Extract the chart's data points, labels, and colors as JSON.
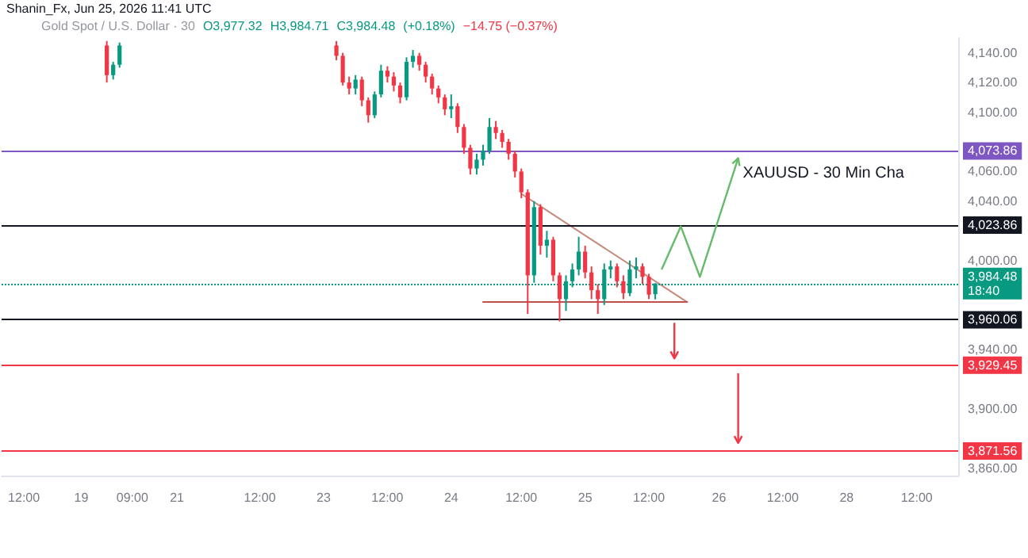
{
  "chart_data": {
    "type": "candlestick",
    "title": "Shanin_Fx, Jun 25, 2026 11:41 UTC",
    "annotations": [
      "Gold Spot / U.S. Dollar · 30",
      "O3,977.32",
      "H3,984.71",
      "C3,984.48",
      "(+0.18%)",
      "−14.75 (−0.37%)",
      "XAUUSD - 30 Min Cha"
    ],
    "categories": [
      null,
      null,
      null,
      "12:00",
      null,
      null,
      null,
      null,
      null,
      null,
      null,
      null,
      "19",
      null,
      null,
      null,
      null,
      null,
      null,
      null,
      "09:00",
      null,
      null,
      null,
      null,
      null,
      null,
      "21",
      null,
      null,
      null,
      null,
      null,
      null,
      null,
      null,
      null,
      null,
      null,
      null,
      "12:00",
      null,
      null,
      null,
      null,
      null,
      null,
      null,
      null,
      null,
      "23",
      null,
      null,
      null,
      null,
      null,
      null,
      null,
      null,
      null,
      "12:00",
      null,
      null,
      null,
      null,
      null,
      null,
      null,
      null,
      null,
      "24",
      null,
      null,
      null,
      null,
      null,
      null,
      null,
      null,
      null,
      null,
      "12:00",
      null,
      null,
      null,
      null,
      null,
      null,
      null,
      null,
      null,
      "25",
      null,
      null,
      null,
      null,
      null,
      null,
      null,
      null,
      null,
      "12:00",
      null,
      null,
      null,
      null,
      null,
      null,
      null,
      null,
      null,
      null,
      "26",
      null,
      null,
      null,
      null,
      null,
      null,
      null,
      null,
      null,
      "12:00",
      null,
      null,
      null,
      null,
      null,
      null,
      null,
      null,
      null,
      "28",
      null,
      null,
      null,
      null,
      null,
      null,
      null,
      null,
      null,
      null,
      "12:00",
      null,
      null,
      null,
      null,
      null,
      null
    ],
    "ylim": [
      3855,
      4150
    ],
    "yticks": [
      {
        "value": 3860,
        "label": "3,860.00"
      },
      {
        "value": 3900,
        "label": "3,900.00"
      },
      {
        "value": 3940,
        "label": "3,940.00"
      },
      {
        "value": 4000,
        "label": "4,000.00"
      },
      {
        "value": 4040,
        "label": "4,040.00"
      },
      {
        "value": 4060,
        "label": "4,060.00"
      },
      {
        "value": 4100,
        "label": "4,100.00"
      },
      {
        "value": 4120,
        "label": "4,120.00"
      },
      {
        "value": 4140,
        "label": "4,140.00"
      }
    ],
    "grid": false,
    "series": [
      {
        "ohlc": [
          null,
          null,
          null,
          null,
          null,
          null,
          null,
          null,
          null,
          null,
          null,
          null,
          null,
          null,
          null,
          null,
          [
            4145,
            4148,
            4120,
            4125
          ],
          [
            4125,
            4134,
            4122,
            4132
          ],
          [
            4132,
            4147,
            4130,
            4145
          ],
          null,
          null,
          null,
          null,
          null,
          null,
          null,
          null,
          null,
          null,
          null,
          null,
          null,
          null,
          null,
          null,
          null,
          null,
          null,
          null,
          null,
          null,
          null,
          null,
          null,
          null,
          null,
          null,
          null,
          null,
          null,
          null,
          null,
          [
            4145,
            4148,
            4135,
            4138
          ],
          [
            4138,
            4140,
            4118,
            4120
          ],
          [
            4120,
            4124,
            4112,
            4116
          ],
          [
            4116,
            4125,
            4112,
            4122
          ],
          [
            4122,
            4124,
            4104,
            4108
          ],
          [
            4108,
            4110,
            4093,
            4098
          ],
          [
            4098,
            4114,
            4096,
            4112
          ],
          [
            4112,
            4132,
            4110,
            4128
          ],
          [
            4128,
            4131,
            4120,
            4124
          ],
          [
            4124,
            4127,
            4114,
            4118
          ],
          [
            4118,
            4120,
            4106,
            4110
          ],
          [
            4110,
            4137,
            4108,
            4134
          ],
          [
            4134,
            4142,
            4130,
            4138
          ],
          [
            4138,
            4140,
            4128,
            4132
          ],
          [
            4132,
            4134,
            4120,
            4124
          ],
          [
            4124,
            4126,
            4112,
            4116
          ],
          [
            4116,
            4118,
            4106,
            4110
          ],
          [
            4110,
            4112,
            4098,
            4102
          ],
          [
            4102,
            4112,
            4096,
            4104
          ],
          [
            4104,
            4106,
            4086,
            4090
          ],
          [
            4090,
            4092,
            4072,
            4076
          ],
          [
            4076,
            4078,
            4058,
            4062
          ],
          [
            4062,
            4072,
            4058,
            4068
          ],
          [
            4068,
            4078,
            4064,
            4074
          ],
          [
            4074,
            4096,
            4072,
            4090
          ],
          [
            4090,
            4094,
            4082,
            4086
          ],
          [
            4086,
            4088,
            4076,
            4080
          ],
          [
            4080,
            4082,
            4068,
            4072
          ],
          [
            4072,
            4074,
            4056,
            4060
          ],
          [
            4060,
            4062,
            4042,
            4046
          ],
          [
            4046,
            4048,
            3964,
            3990
          ],
          [
            3990,
            4040,
            3985,
            4036
          ],
          [
            4036,
            4038,
            4004,
            4010
          ],
          [
            4010,
            4020,
            4002,
            4014
          ],
          [
            4014,
            4016,
            3986,
            3990
          ],
          [
            3990,
            3992,
            3959,
            3974
          ],
          [
            3974,
            3990,
            3966,
            3986
          ],
          [
            3986,
            3998,
            3982,
            3994
          ],
          [
            3994,
            4016,
            3990,
            4006
          ],
          [
            4006,
            4010,
            3988,
            3992
          ],
          [
            3992,
            3996,
            3974,
            3980
          ],
          [
            3980,
            3984,
            3964,
            3974
          ],
          [
            3974,
            3998,
            3970,
            3994
          ],
          [
            3994,
            4000,
            3988,
            3996
          ],
          [
            3996,
            3998,
            3982,
            3986
          ],
          [
            3986,
            3990,
            3974,
            3978
          ],
          [
            3978,
            4000,
            3976,
            3994
          ],
          [
            3994,
            4002,
            3988,
            3996
          ],
          [
            3996,
            3998,
            3984,
            3989
          ],
          [
            3989,
            3991,
            3974,
            3977
          ],
          [
            3977.32,
            3984.71,
            3973.8,
            3984.48
          ],
          null,
          null,
          null,
          null,
          null,
          null,
          null,
          null,
          null,
          null,
          null,
          null,
          null,
          null,
          null,
          null,
          null,
          null,
          null,
          null,
          null,
          null,
          null,
          null,
          null,
          null,
          null,
          null,
          null,
          null,
          null,
          null,
          null,
          null,
          null,
          null,
          null,
          null,
          null,
          null,
          null,
          null,
          null,
          null,
          null,
          null,
          null
        ],
        "colors": [
          null,
          null,
          null,
          null,
          null,
          null,
          null,
          null,
          null,
          null,
          null,
          null,
          null,
          null,
          null,
          null,
          "#f23645",
          "#089981",
          "#089981",
          null,
          null,
          null,
          null,
          null,
          null,
          null,
          null,
          null,
          null,
          null,
          null,
          null,
          null,
          null,
          null,
          null,
          null,
          null,
          null,
          null,
          null,
          null,
          null,
          null,
          null,
          null,
          null,
          null,
          null,
          null,
          null,
          null,
          "#f23645",
          "#f23645",
          "#f23645",
          "#089981",
          "#f23645",
          "#f23645",
          "#089981",
          "#089981",
          "#f23645",
          "#f23645",
          "#f23645",
          "#089981",
          "#089981",
          "#f23645",
          "#f23645",
          "#f23645",
          "#f23645",
          "#f23645",
          "#089981",
          "#f23645",
          "#f23645",
          "#f23645",
          "#089981",
          "#089981",
          "#089981",
          "#f23645",
          "#f23645",
          "#f23645",
          "#f23645",
          "#f23645",
          "#f23645",
          "#089981",
          "#f23645",
          "#089981",
          "#f23645",
          "#f23645",
          "#089981",
          "#089981",
          "#089981",
          "#f23645",
          "#f23645",
          "#f23645",
          "#089981",
          "#089981",
          "#f23645",
          "#f23645",
          "#089981",
          "#089981",
          "#f23645",
          "#f23645",
          "#089981",
          null,
          null,
          null,
          null,
          null,
          null,
          null,
          null,
          null,
          null,
          null,
          null,
          null,
          null,
          null,
          null,
          null,
          null,
          null,
          null,
          null,
          null,
          null,
          null,
          null,
          null,
          null,
          null,
          null,
          null,
          null,
          null,
          null,
          null,
          null,
          null,
          null,
          null,
          null,
          null,
          null,
          null,
          null,
          null,
          null,
          null,
          null
        ]
      },
      {
        "type": "line",
        "color": "#c48a7a",
        "values": [
          null,
          null,
          null,
          null,
          null,
          null,
          null,
          null,
          null,
          null,
          null,
          null,
          null,
          null,
          null,
          null,
          null,
          null,
          null,
          null,
          null,
          null,
          null,
          null,
          null,
          null,
          null,
          null,
          null,
          null,
          null,
          null,
          null,
          null,
          null,
          null,
          null,
          null,
          null,
          null,
          null,
          null,
          null,
          null,
          null,
          null,
          null,
          null,
          null,
          null,
          null,
          null,
          null,
          null,
          null,
          null,
          null,
          null,
          null,
          null,
          null,
          null,
          null,
          null,
          null,
          null,
          null,
          null,
          null,
          null,
          null,
          null,
          null,
          null,
          null,
          null,
          null,
          null,
          null,
          null,
          null,
          4045,
          null,
          null,
          null,
          null,
          null,
          null,
          null,
          null,
          null,
          null,
          null,
          null,
          null,
          null,
          null,
          null,
          null,
          null,
          null,
          null,
          null,
          null,
          null,
          null,
          null,
          3972,
          null,
          null,
          null,
          null,
          null,
          null,
          null,
          null,
          null,
          null,
          null,
          null,
          null,
          null,
          null,
          null,
          null,
          null,
          null,
          null,
          null,
          null,
          null,
          null,
          null,
          null,
          null,
          null,
          null,
          null,
          null,
          null,
          null,
          null,
          null,
          null,
          null,
          null,
          null,
          null,
          null,
          null
        ]
      },
      {
        "type": "line",
        "color": "#c0504d",
        "values": [
          null,
          null,
          null,
          null,
          null,
          null,
          null,
          null,
          null,
          null,
          null,
          null,
          null,
          null,
          null,
          null,
          null,
          null,
          null,
          null,
          null,
          null,
          null,
          null,
          null,
          null,
          null,
          null,
          null,
          null,
          null,
          null,
          null,
          null,
          null,
          null,
          null,
          null,
          null,
          null,
          null,
          null,
          null,
          null,
          null,
          null,
          null,
          null,
          null,
          null,
          null,
          null,
          null,
          null,
          null,
          null,
          null,
          null,
          null,
          null,
          null,
          null,
          null,
          null,
          null,
          null,
          null,
          null,
          null,
          null,
          null,
          null,
          null,
          null,
          null,
          3972,
          null,
          null,
          null,
          null,
          null,
          null,
          null,
          null,
          null,
          null,
          null,
          null,
          null,
          null,
          null,
          null,
          null,
          null,
          null,
          null,
          null,
          null,
          null,
          null,
          null,
          null,
          null,
          null,
          null,
          null,
          null,
          3972,
          null,
          null,
          null,
          null,
          null,
          null,
          null,
          null,
          null,
          null,
          null,
          null,
          null,
          null,
          null,
          null,
          null,
          null,
          null,
          null,
          null,
          null,
          null,
          null,
          null,
          null,
          null,
          null,
          null,
          null,
          null,
          null,
          null,
          null,
          null,
          null,
          null,
          null,
          null,
          null,
          null,
          null
        ]
      }
    ],
    "ref_lines": [
      {
        "axis": "y",
        "value": 4073.86,
        "label": "4,073.86",
        "color": "#7e57c2"
      },
      {
        "axis": "y",
        "value": 4023.86,
        "label": "4,023.86",
        "color": "#131722"
      },
      {
        "axis": "y",
        "value": 3984.48,
        "label": "3,984.48\n18:40",
        "color": "#089981",
        "line_style": "dotted"
      },
      {
        "axis": "y",
        "value": 3960.06,
        "label": "3,960.06",
        "color": "#131722"
      },
      {
        "axis": "y",
        "value": 3929.45,
        "label": "3,929.45",
        "color": "#f23645"
      },
      {
        "axis": "y",
        "value": 3871.56,
        "label": "3,871.56",
        "color": "#f23645"
      }
    ]
  }
}
